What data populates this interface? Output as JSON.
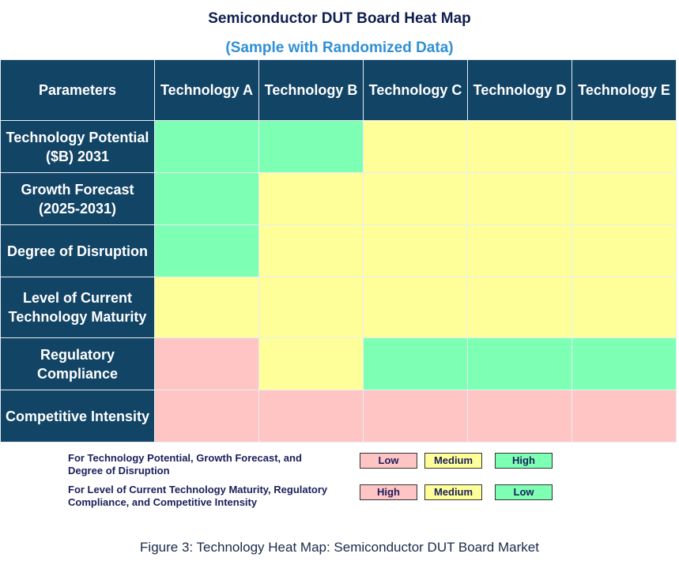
{
  "chart_data": {
    "type": "heatmap",
    "title": "Semiconductor DUT Board Heat Map",
    "subtitle": "(Sample with Randomized Data)",
    "corner_header": "Parameters",
    "columns": [
      "Technology A",
      "Technology B",
      "Technology C",
      "Technology D",
      "Technology E"
    ],
    "rows": [
      {
        "label": "Technology Potential ($B) 2031",
        "values": [
          "green",
          "green",
          "yellow",
          "yellow",
          "yellow"
        ]
      },
      {
        "label": "Growth Forecast (2025-2031)",
        "values": [
          "green",
          "yellow",
          "yellow",
          "yellow",
          "yellow"
        ]
      },
      {
        "label": "Degree of Disruption",
        "values": [
          "green",
          "yellow",
          "yellow",
          "yellow",
          "yellow"
        ]
      },
      {
        "label": "Level of Current Technology Maturity",
        "values": [
          "yellow",
          "yellow",
          "yellow",
          "yellow",
          "yellow"
        ]
      },
      {
        "label": "Regulatory Compliance",
        "values": [
          "red",
          "yellow",
          "green",
          "green",
          "green"
        ]
      },
      {
        "label": "Competitive Intensity",
        "values": [
          "red",
          "red",
          "red",
          "red",
          "red"
        ]
      }
    ],
    "colors": {
      "green": "#7dffb4",
      "yellow": "#ffff99",
      "red": "#ffc4c4",
      "header": "#124466"
    },
    "legend": [
      {
        "text": "For Technology Potential, Growth Forecast, and Degree of Disruption",
        "keys": [
          "Low",
          "Medium",
          "High"
        ]
      },
      {
        "text": "For Level of Current Technology Maturity, Regulatory Compliance, and Competitive Intensity",
        "keys": [
          "High",
          "Medium",
          "Low"
        ]
      }
    ],
    "caption": "Figure 3: Technology Heat Map: Semiconductor DUT Board Market"
  }
}
